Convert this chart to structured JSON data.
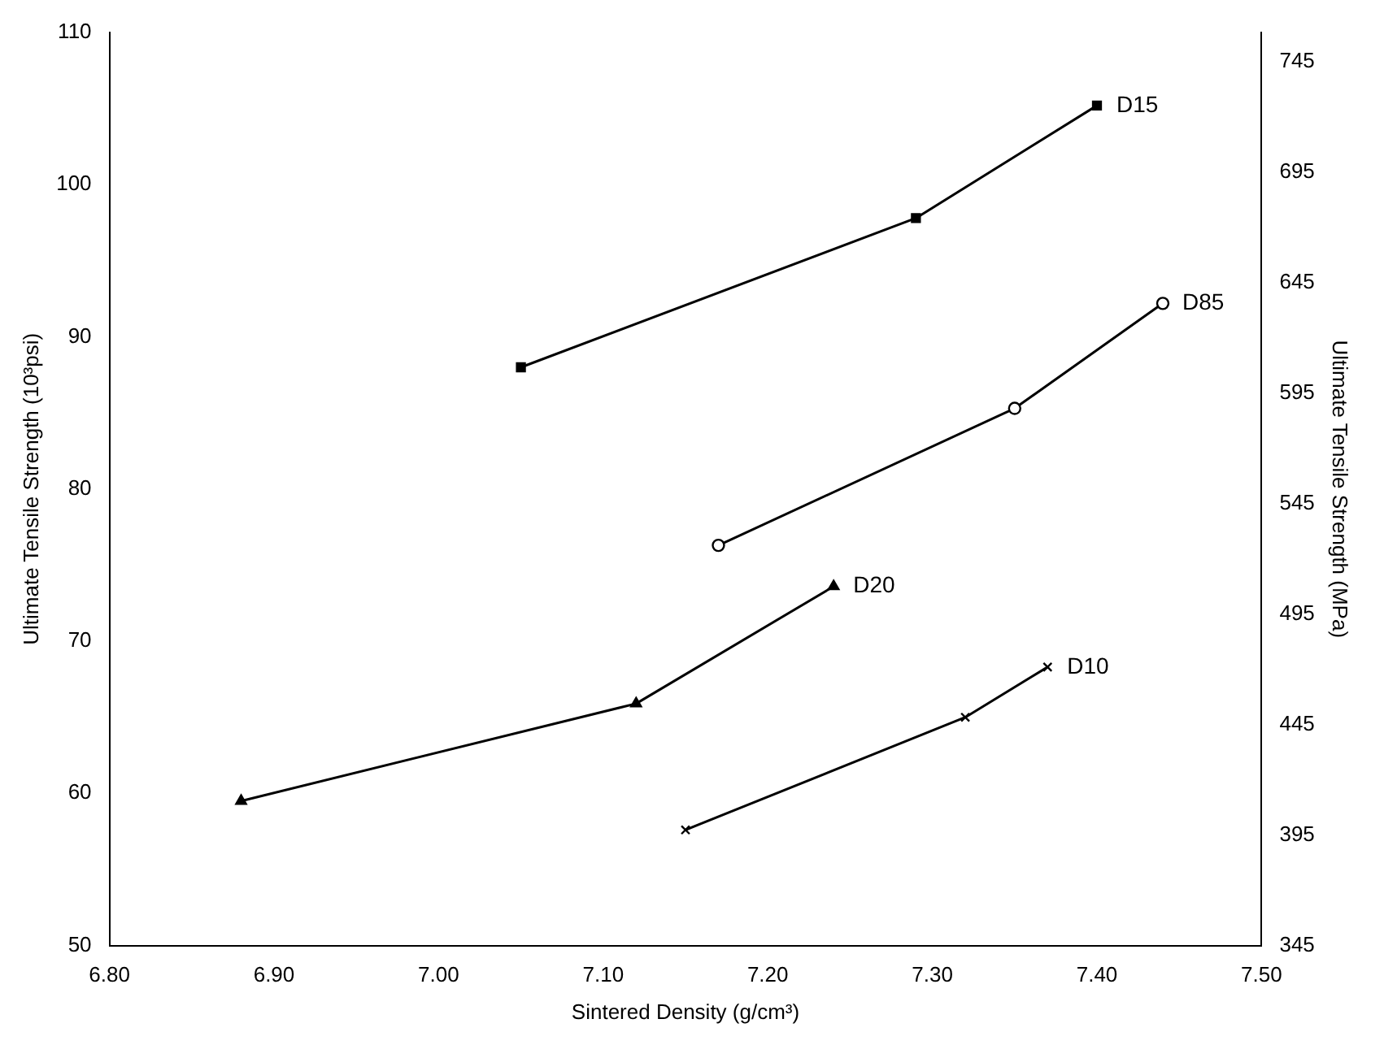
{
  "chart_data": {
    "type": "line",
    "xlabel": "Sintered Density (g/cm³)",
    "ylabel": "Ultimate Tensile Strength (10³psi)",
    "y2label": "Ultimate Tensile Strength (MPa)",
    "xlim": [
      6.8,
      7.5
    ],
    "xticks": [
      {
        "value": 6.8,
        "label": "6.80"
      },
      {
        "value": 6.9,
        "label": "6.90"
      },
      {
        "value": 7.0,
        "label": "7.00"
      },
      {
        "value": 7.1,
        "label": "7.10"
      },
      {
        "value": 7.2,
        "label": "7.20"
      },
      {
        "value": 7.3,
        "label": "7.30"
      },
      {
        "value": 7.4,
        "label": "7.40"
      },
      {
        "value": 7.5,
        "label": "7.50"
      }
    ],
    "ylim": [
      50,
      110
    ],
    "yticks": [
      50,
      60,
      70,
      80,
      90,
      100,
      110
    ],
    "y2lim": [
      345,
      758
    ],
    "y2ticks": [
      345,
      395,
      445,
      495,
      545,
      595,
      645,
      695,
      745
    ],
    "grid": false,
    "legend": false,
    "line_style": "solid",
    "series": [
      {
        "color": "#000000",
        "marker": "square",
        "x": [
          7.05,
          7.29,
          7.4
        ],
        "values": [
          88,
          97.8,
          105.2
        ]
      },
      {
        "color": "#000000",
        "marker": "circle",
        "x": [
          7.17,
          7.35,
          7.44
        ],
        "values": [
          76.3,
          85.3,
          92.2
        ]
      },
      {
        "color": "#000000",
        "marker": "triangle",
        "x": [
          6.88,
          7.12,
          7.24
        ],
        "values": [
          59.5,
          65.9,
          73.6
        ]
      },
      {
        "color": "#000000",
        "marker": "cross",
        "x": [
          7.15,
          7.32,
          7.37
        ],
        "values": [
          57.6,
          65.0,
          68.3
        ]
      }
    ],
    "annotations": [
      {
        "text": "D15",
        "x": 7.4,
        "y": 105.2
      },
      {
        "text": "D85",
        "x": 7.44,
        "y": 92.2
      },
      {
        "text": "D20",
        "x": 7.24,
        "y": 73.6
      },
      {
        "text": "D10",
        "x": 7.37,
        "y": 68.3
      }
    ]
  }
}
